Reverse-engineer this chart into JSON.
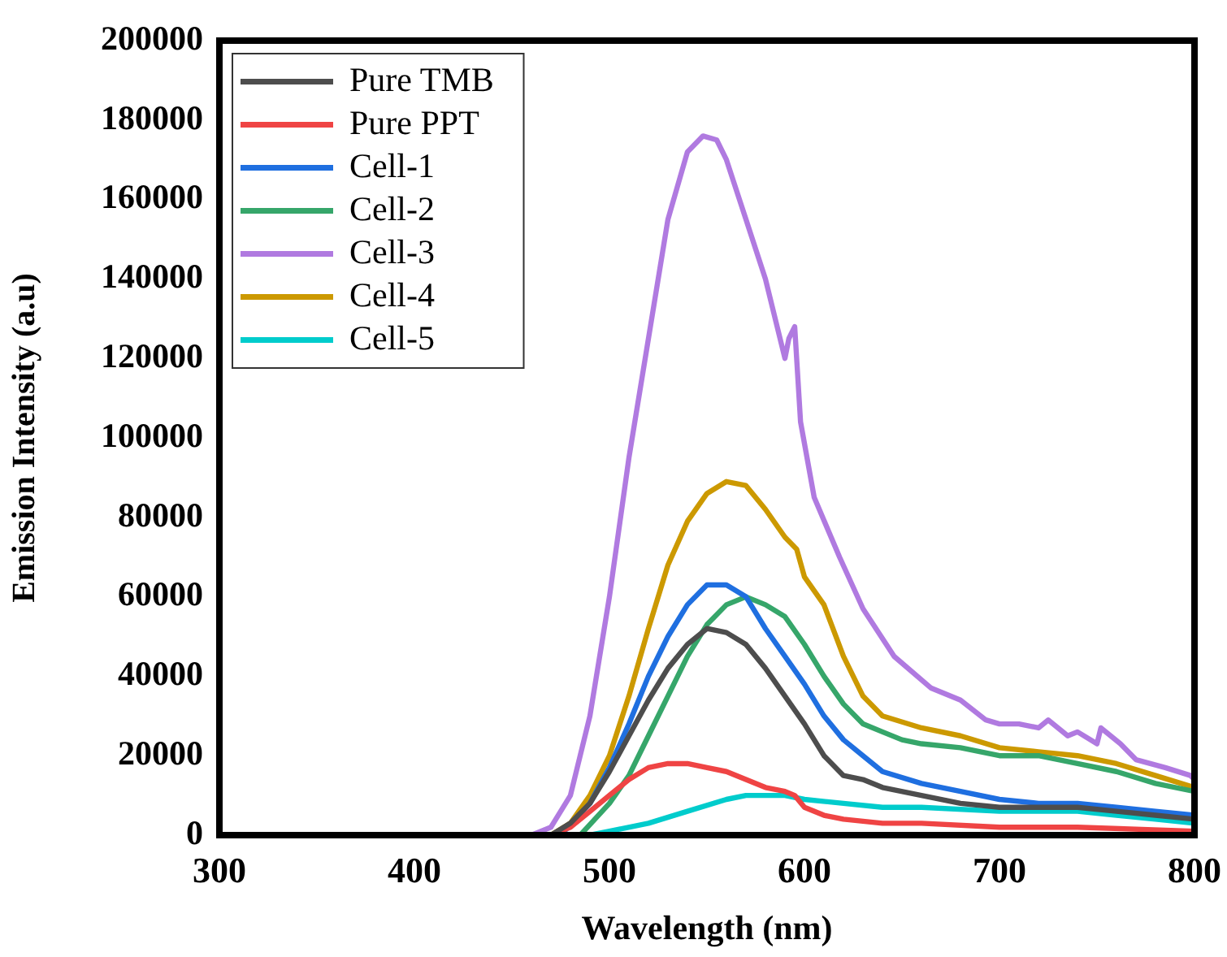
{
  "chart_data": {
    "type": "line",
    "xlabel": "Wavelength (nm)",
    "ylabel": "Emission Intensity (a.u)",
    "xlim": [
      300,
      800
    ],
    "xticks": [
      300,
      400,
      500,
      600,
      700,
      800
    ],
    "ylim": [
      0,
      200000
    ],
    "yticks": [
      0,
      20000,
      40000,
      60000,
      80000,
      100000,
      120000,
      140000,
      160000,
      180000,
      200000
    ],
    "grid": false,
    "legend": "top left",
    "series": [
      {
        "name": "Pure TMB",
        "color": "#4d4d4d",
        "x": [
          300,
          470,
          480,
          490,
          500,
          510,
          520,
          530,
          540,
          550,
          560,
          570,
          580,
          590,
          600,
          610,
          620,
          630,
          640,
          660,
          680,
          700,
          720,
          740,
          760,
          780,
          800
        ],
        "values": [
          0,
          0,
          3000,
          8000,
          16000,
          25000,
          34000,
          42000,
          48000,
          52000,
          51000,
          48000,
          42000,
          35000,
          28000,
          20000,
          15000,
          14000,
          12000,
          10000,
          8000,
          7000,
          7000,
          7000,
          6000,
          5000,
          4000
        ]
      },
      {
        "name": "Pure PPT",
        "color": "#ef4444",
        "x": [
          300,
          470,
          480,
          490,
          500,
          510,
          520,
          530,
          540,
          550,
          560,
          570,
          580,
          590,
          595,
          600,
          610,
          620,
          640,
          660,
          700,
          740,
          800
        ],
        "values": [
          0,
          0,
          2000,
          6000,
          10000,
          14000,
          17000,
          18000,
          18000,
          17000,
          16000,
          14000,
          12000,
          11000,
          10000,
          7000,
          5000,
          4000,
          3000,
          3000,
          2000,
          2000,
          1000
        ]
      },
      {
        "name": "Cell-1",
        "color": "#1f6fe0",
        "x": [
          300,
          475,
          490,
          500,
          510,
          520,
          530,
          540,
          550,
          560,
          570,
          580,
          590,
          600,
          610,
          620,
          630,
          640,
          660,
          680,
          700,
          720,
          740,
          760,
          780,
          800
        ],
        "values": [
          0,
          0,
          8000,
          17000,
          28000,
          40000,
          50000,
          58000,
          63000,
          63000,
          60000,
          52000,
          45000,
          38000,
          30000,
          24000,
          20000,
          16000,
          13000,
          11000,
          9000,
          8000,
          8000,
          7000,
          6000,
          5000
        ]
      },
      {
        "name": "Cell-2",
        "color": "#36a66a",
        "x": [
          300,
          485,
          500,
          510,
          520,
          530,
          540,
          550,
          560,
          570,
          580,
          590,
          600,
          610,
          620,
          630,
          640,
          650,
          660,
          680,
          700,
          720,
          740,
          760,
          780,
          800
        ],
        "values": [
          0,
          0,
          8000,
          15000,
          25000,
          35000,
          45000,
          53000,
          58000,
          60000,
          58000,
          55000,
          48000,
          40000,
          33000,
          28000,
          26000,
          24000,
          23000,
          22000,
          20000,
          20000,
          18000,
          16000,
          13000,
          11000
        ]
      },
      {
        "name": "Cell-3",
        "color": "#b07ae0",
        "x": [
          300,
          460,
          470,
          480,
          490,
          500,
          510,
          520,
          530,
          540,
          548,
          555,
          560,
          570,
          580,
          590,
          592,
          595,
          598,
          605,
          618,
          630,
          646,
          665,
          680,
          693,
          700,
          710,
          720,
          725,
          735,
          740,
          750,
          752,
          762,
          770,
          785,
          798,
          800
        ],
        "values": [
          0,
          0,
          2000,
          10000,
          30000,
          60000,
          95000,
          125000,
          155000,
          172000,
          176000,
          175000,
          170000,
          155000,
          140000,
          120000,
          125000,
          128000,
          104000,
          85000,
          70000,
          57000,
          45000,
          37000,
          34000,
          29000,
          28000,
          28000,
          27000,
          29000,
          25000,
          26000,
          23000,
          27000,
          23000,
          19000,
          17000,
          15000,
          14000
        ]
      },
      {
        "name": "Cell-4",
        "color": "#cc9900",
        "x": [
          300,
          470,
          480,
          490,
          500,
          510,
          520,
          530,
          540,
          550,
          560,
          570,
          580,
          590,
          596,
          600,
          610,
          620,
          630,
          640,
          660,
          680,
          700,
          720,
          740,
          760,
          780,
          800
        ],
        "values": [
          0,
          0,
          3000,
          10000,
          20000,
          35000,
          52000,
          68000,
          79000,
          86000,
          89000,
          88000,
          82000,
          75000,
          72000,
          65000,
          58000,
          45000,
          35000,
          30000,
          27000,
          25000,
          22000,
          21000,
          20000,
          18000,
          15000,
          12000
        ]
      },
      {
        "name": "Cell-5",
        "color": "#00cccc",
        "x": [
          300,
          490,
          500,
          520,
          540,
          560,
          570,
          580,
          590,
          600,
          620,
          640,
          660,
          700,
          740,
          760,
          780,
          800
        ],
        "values": [
          0,
          0,
          1000,
          3000,
          6000,
          9000,
          10000,
          10000,
          10000,
          9000,
          8000,
          7000,
          7000,
          6000,
          6000,
          5000,
          4000,
          3000
        ]
      }
    ]
  }
}
